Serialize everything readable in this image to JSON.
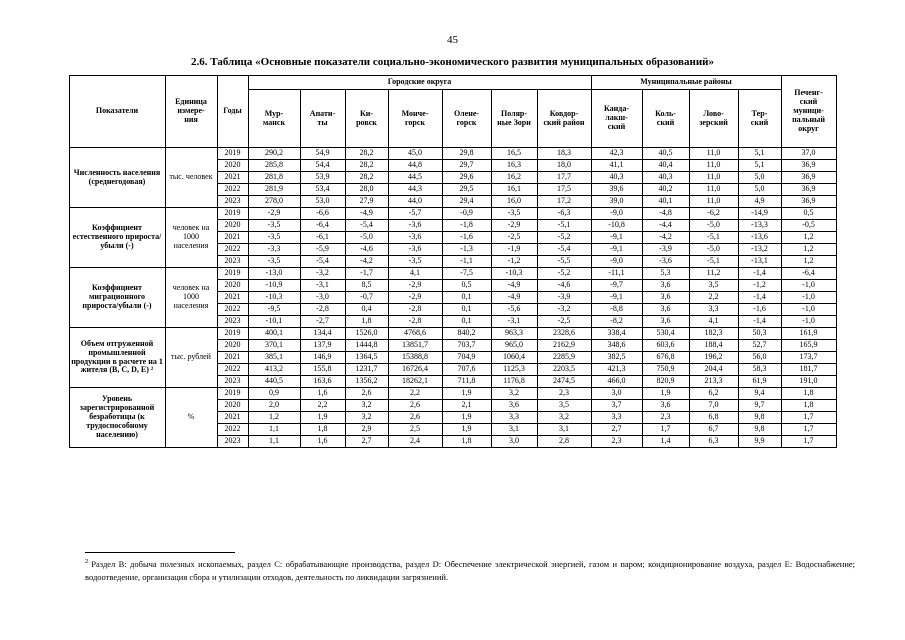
{
  "page": {
    "number": "45",
    "title": "2.6. Таблица «Основные показатели социально-экономического развития муниципальных образований»"
  },
  "table": {
    "header": {
      "indicators": "Показатели",
      "unit": "Единица\nизмере-\nния",
      "years": "Годы",
      "urban_group": "Городские округа",
      "municipal_group": "Муниципальные районы",
      "cities": [
        "Мур-\nманск",
        "Апати-\nты",
        "Ки-\nровск",
        "Монче-\nгорск",
        "Олене-\nгорск",
        "Поляр-\nные Зори",
        "Ковдор-\nский район",
        "Канда-\nлакш-\nский",
        "Коль-\nский",
        "Лово-\nзерский",
        "Тер-\nский"
      ],
      "pechengsky": "Печенг-\nский\nмуници-\nпальный\nокруг"
    },
    "sections": [
      {
        "indicator": "Численность населения (среднегодовая)",
        "unit": "тыс. человек",
        "rows": [
          {
            "year": "2019",
            "values": [
              "290,2",
              "54,9",
              "28,2",
              "45,0",
              "29,8",
              "16,5",
              "18,3",
              "42,3",
              "40,5",
              "11,0",
              "5,1",
              "37,0"
            ]
          },
          {
            "year": "2020",
            "values": [
              "285,8",
              "54,4",
              "28,2",
              "44,8",
              "29,7",
              "16,3",
              "18,0",
              "41,1",
              "40,4",
              "11,0",
              "5,1",
              "36,9"
            ]
          },
          {
            "year": "2021",
            "values": [
              "281,8",
              "53,9",
              "28,2",
              "44,5",
              "29,6",
              "16,2",
              "17,7",
              "40,3",
              "40,3",
              "11,0",
              "5,0",
              "36,9"
            ]
          },
          {
            "year": "2022",
            "values": [
              "281,9",
              "53,4",
              "28,0",
              "44,3",
              "29,5",
              "16,1",
              "17,5",
              "39,6",
              "40,2",
              "11,0",
              "5,0",
              "36,9"
            ]
          },
          {
            "year": "2023",
            "values": [
              "278,0",
              "53,0",
              "27,9",
              "44,0",
              "29,4",
              "16,0",
              "17,2",
              "39,0",
              "40,1",
              "11,0",
              "4,9",
              "36,9"
            ]
          }
        ]
      },
      {
        "indicator": "Коэффициент естественного прироста/убыли (-)",
        "unit": "человек на 1000 населения",
        "rows": [
          {
            "year": "2019",
            "values": [
              "-2,9",
              "-6,6",
              "-4,9",
              "-5,7",
              "-0,9",
              "-3,5",
              "-6,3",
              "-9,0",
              "-4,8",
              "-6,2",
              "-14,9",
              "0,5"
            ]
          },
          {
            "year": "2020",
            "values": [
              "-3,5",
              "-6,4",
              "-5,4",
              "-3,6",
              "-1,8",
              "-2,9",
              "-5,1",
              "-10,8",
              "-4,4",
              "-5,0",
              "-13,3",
              "-0,5"
            ]
          },
          {
            "year": "2021",
            "values": [
              "-3,5",
              "-6,1",
              "-5,0",
              "-3,6",
              "-1,6",
              "-2,5",
              "-5,2",
              "-9,1",
              "-4,2",
              "-5,1",
              "-13,6",
              "1,2"
            ]
          },
          {
            "year": "2022",
            "values": [
              "-3,3",
              "-5,9",
              "-4,6",
              "-3,6",
              "-1,3",
              "-1,9",
              "-5,4",
              "-9,1",
              "-3,9",
              "-5,0",
              "-13,2",
              "1,2"
            ]
          },
          {
            "year": "2023",
            "values": [
              "-3,5",
              "-5,4",
              "-4,2",
              "-3,5",
              "-1,1",
              "-1,2",
              "-5,5",
              "-9,0",
              "-3,6",
              "-5,1",
              "-13,1",
              "1,2"
            ]
          }
        ]
      },
      {
        "indicator": "Коэффициент миграционного прироста/убыли (-)",
        "unit": "человек на 1000 населения",
        "rows": [
          {
            "year": "2019",
            "values": [
              "-13,0",
              "-3,2",
              "-1,7",
              "4,1",
              "-7,5",
              "-10,3",
              "-5,2",
              "-11,1",
              "5,3",
              "11,2",
              "-1,4",
              "-6,4"
            ]
          },
          {
            "year": "2020",
            "values": [
              "-10,9",
              "-3,1",
              "8,5",
              "-2,9",
              "0,5",
              "-4,9",
              "-4,6",
              "-9,7",
              "3,6",
              "3,5",
              "-1,2",
              "-1,0"
            ]
          },
          {
            "year": "2021",
            "values": [
              "-10,3",
              "-3,0",
              "-0,7",
              "-2,9",
              "0,1",
              "-4,9",
              "-3,9",
              "-9,1",
              "3,6",
              "2,2",
              "-1,4",
              "-1,0"
            ]
          },
          {
            "year": "2022",
            "values": [
              "-9,5",
              "-2,8",
              "0,4",
              "-2,8",
              "0,1",
              "-5,6",
              "-3,2",
              "-8,8",
              "3,6",
              "3,3",
              "-1,6",
              "-1,0"
            ]
          },
          {
            "year": "2023",
            "values": [
              "-10,1",
              "-2,7",
              "1,8",
              "-2,8",
              "0,1",
              "-3,1",
              "-2,5",
              "-8,2",
              "3,6",
              "4,1",
              "-1,4",
              "-1,0"
            ]
          }
        ]
      },
      {
        "indicator": "Объем отгруженной промышленной продукции в расчете на 1 жителя (B, C, D, E) ²",
        "unit": "тыс. рублей",
        "rows": [
          {
            "year": "2019",
            "values": [
              "400,1",
              "134,4",
              "1526,0",
              "4768,6",
              "840,2",
              "963,3",
              "2328,6",
              "338,4",
              "530,4",
              "182,3",
              "50,3",
              "161,9"
            ]
          },
          {
            "year": "2020",
            "values": [
              "370,1",
              "137,9",
              "1444,8",
              "13851,7",
              "703,7",
              "965,0",
              "2162,9",
              "348,6",
              "603,6",
              "188,4",
              "52,7",
              "165,9"
            ]
          },
          {
            "year": "2021",
            "values": [
              "385,1",
              "146,9",
              "1364,5",
              "15388,8",
              "704,9",
              "1060,4",
              "2285,9",
              "382,5",
              "676,8",
              "196,2",
              "56,0",
              "173,7"
            ]
          },
          {
            "year": "2022",
            "values": [
              "413,2",
              "155,8",
              "1231,7",
              "16726,4",
              "707,6",
              "1125,3",
              "2203,5",
              "421,3",
              "750,9",
              "204,4",
              "58,3",
              "181,7"
            ]
          },
          {
            "year": "2023",
            "values": [
              "440,5",
              "163,6",
              "1356,2",
              "18262,1",
              "711,8",
              "1176,8",
              "2474,5",
              "466,0",
              "820,9",
              "213,3",
              "61,9",
              "191,0"
            ]
          }
        ]
      },
      {
        "indicator": "Уровень зарегистрированной безработицы (к трудоспособному населению)",
        "unit": "%",
        "rows": [
          {
            "year": "2019",
            "values": [
              "0,9",
              "1,6",
              "2,6",
              "2,2",
              "1,9",
              "3,2",
              "2,3",
              "3,0",
              "1,9",
              "6,2",
              "9,4",
              "1,8"
            ]
          },
          {
            "year": "2020",
            "values": [
              "2,0",
              "2,2",
              "3,2",
              "2,6",
              "2,1",
              "3,6",
              "3,5",
              "3,7",
              "3,6",
              "7,0",
              "9,7",
              "1,8"
            ]
          },
          {
            "year": "2021",
            "values": [
              "1,2",
              "1,9",
              "3,2",
              "2,6",
              "1,9",
              "3,3",
              "3,2",
              "3,3",
              "2,3",
              "6,8",
              "9,8",
              "1,7"
            ]
          },
          {
            "year": "2022",
            "values": [
              "1,1",
              "1,8",
              "2,9",
              "2,5",
              "1,9",
              "3,1",
              "3,1",
              "2,7",
              "1,7",
              "6,7",
              "9,8",
              "1,7"
            ]
          },
          {
            "year": "2023",
            "values": [
              "1,1",
              "1,6",
              "2,7",
              "2,4",
              "1,8",
              "3,0",
              "2,8",
              "2,3",
              "1,4",
              "6,3",
              "9,9",
              "1,7"
            ]
          }
        ]
      }
    ]
  },
  "footnote": {
    "marker": "2",
    "text": "Раздел В: добыча полезных ископаемых, раздел С: обрабатывающие производства, раздел D: Обеспечение электрической энергией, газом и паром; кондиционирование воздуха, раздел Е: Водоснабжение; водоотведение, организация сбора и утилизации отходов, деятельность по ликвидации загрязнений."
  }
}
